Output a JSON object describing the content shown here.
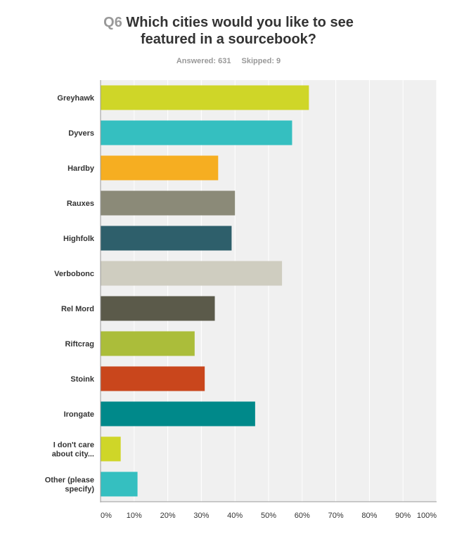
{
  "header": {
    "question_number": "Q6",
    "title_line1": "Which cities would you like to see",
    "title_line2": "featured in a sourcebook?",
    "answered": "Answered: 631",
    "skipped": "Skipped: 9"
  },
  "chart_data": {
    "type": "bar",
    "orientation": "horizontal",
    "categories": [
      [
        "Greyhawk"
      ],
      [
        "Dyvers"
      ],
      [
        "Hardby"
      ],
      [
        "Rauxes"
      ],
      [
        "Highfolk"
      ],
      [
        "Verbobonc"
      ],
      [
        "Rel Mord"
      ],
      [
        "Riftcrag"
      ],
      [
        "Stoink"
      ],
      [
        "Irongate"
      ],
      [
        "I don't care",
        "about city..."
      ],
      [
        "Other (please",
        "specify)"
      ]
    ],
    "values": [
      62,
      57,
      35,
      40,
      39,
      54,
      34,
      28,
      31,
      46,
      6,
      11
    ],
    "xlim": [
      0,
      100
    ],
    "xticks": [
      "0%",
      "10%",
      "20%",
      "30%",
      "40%",
      "50%",
      "60%",
      "70%",
      "80%",
      "90%",
      "100%"
    ],
    "grid": true,
    "colors": [
      "#cfd628",
      "#35bfc0",
      "#f6ae21",
      "#8b8a78",
      "#2e5f6b",
      "#cfcdc0",
      "#5b5a4a",
      "#abbd3a",
      "#c9461c",
      "#00898a",
      "#cfd628",
      "#35bfc0"
    ],
    "plot_background": "#f0f0f0",
    "grid_color": "#ffffff",
    "axis_color": "#999999"
  }
}
